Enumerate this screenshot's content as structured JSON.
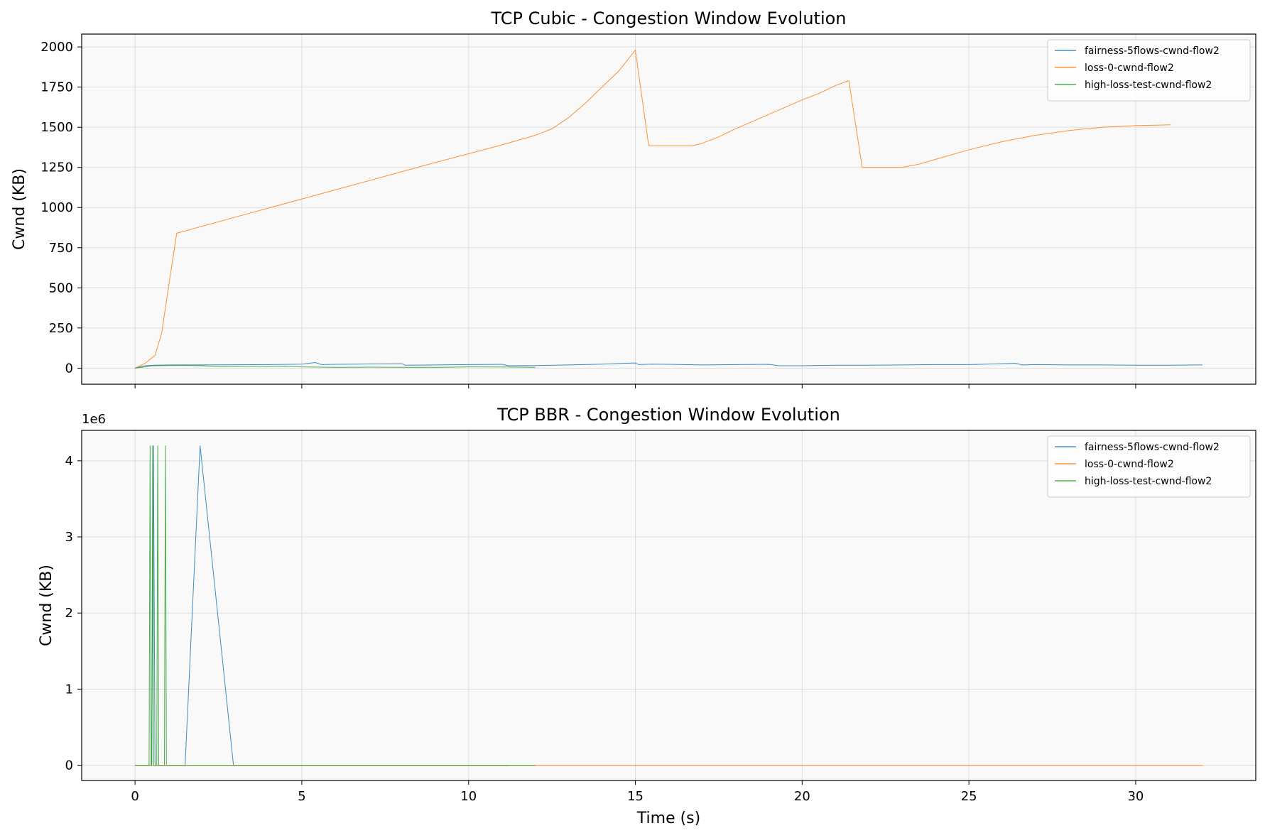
{
  "colors": {
    "series0": "#1f77b4",
    "series1": "#ff7f0e",
    "series2": "#2ca02c",
    "plot_bg": "#f9f9f9",
    "grid": "#dddddd"
  },
  "chart_data": [
    {
      "type": "line",
      "title": "TCP Cubic - Congestion Window Evolution",
      "xlabel": "",
      "ylabel": "Cwnd (KB)",
      "xlim": [
        -1.6,
        33.6
      ],
      "ylim": [
        -100,
        2080
      ],
      "xticks": [
        0,
        5,
        10,
        15,
        20,
        25,
        30
      ],
      "xtick_labels": [
        "",
        "",
        "",
        "",
        "",
        "",
        ""
      ],
      "yticks": [
        0,
        250,
        500,
        750,
        1000,
        1250,
        1500,
        1750,
        2000
      ],
      "ytick_labels": [
        "0",
        "250",
        "500",
        "750",
        "1000",
        "1250",
        "1500",
        "1750",
        "2000"
      ],
      "grid": true,
      "legend": "top-right",
      "series": [
        {
          "name": "fairness-5flows-cwnd-flow2",
          "x": [
            0,
            0.3,
            0.6,
            1,
            2,
            3,
            4,
            5,
            5.2,
            5.4,
            5.6,
            6,
            7,
            8,
            8.1,
            9,
            10,
            11,
            11.2,
            12,
            13,
            14,
            15,
            15.1,
            15.5,
            16,
            17,
            18,
            19,
            19.3,
            20,
            21,
            22,
            23,
            24,
            25,
            26,
            26.4,
            26.6,
            27,
            28,
            29,
            30,
            31,
            31.8,
            32
          ],
          "y": [
            0,
            15,
            18,
            20,
            20,
            21,
            22,
            25,
            30,
            35,
            22,
            24,
            26,
            28,
            18,
            20,
            22,
            24,
            15,
            16,
            20,
            25,
            32,
            22,
            25,
            24,
            20,
            22,
            24,
            15,
            15,
            18,
            18,
            20,
            22,
            22,
            28,
            30,
            20,
            22,
            20,
            20,
            18,
            18,
            20,
            20
          ]
        },
        {
          "name": "loss-0-cwnd-flow2",
          "x": [
            0,
            0.3,
            0.6,
            0.8,
            1,
            1.25,
            3,
            6,
            9,
            11,
            12,
            12.5,
            13,
            13.5,
            14,
            14.5,
            15,
            15.4,
            16,
            16.7,
            17,
            17.5,
            18,
            19,
            20,
            20.5,
            21,
            21.4,
            21.8,
            22.5,
            23,
            23.5,
            24,
            25,
            26,
            27,
            28,
            29,
            30,
            31.05
          ],
          "y": [
            0,
            30,
            80,
            220,
            500,
            840,
            940,
            1110,
            1280,
            1390,
            1450,
            1490,
            1560,
            1650,
            1750,
            1850,
            1980,
            1385,
            1385,
            1385,
            1400,
            1440,
            1490,
            1580,
            1670,
            1710,
            1760,
            1790,
            1250,
            1250,
            1250,
            1270,
            1300,
            1360,
            1410,
            1450,
            1480,
            1500,
            1510,
            1515
          ]
        },
        {
          "name": "high-loss-test-cwnd-flow2",
          "x": [
            0,
            0.3,
            0.5,
            1,
            1.5,
            2,
            2.5,
            3,
            3.5,
            4,
            4.5,
            5,
            6,
            7,
            8,
            9,
            10,
            11,
            12
          ],
          "y": [
            0,
            8,
            15,
            16,
            17,
            15,
            10,
            10,
            12,
            10,
            12,
            8,
            5,
            6,
            5,
            5,
            8,
            7,
            5
          ]
        }
      ]
    },
    {
      "type": "line",
      "title": "TCP BBR - Congestion Window Evolution",
      "xlabel": "Time (s)",
      "ylabel": "Cwnd (KB)",
      "axis_multiplier": "1e6",
      "xlim": [
        -1.6,
        33.6
      ],
      "ylim": [
        -0.2,
        4.4
      ],
      "xticks": [
        0,
        5,
        10,
        15,
        20,
        25,
        30
      ],
      "xtick_labels": [
        "0",
        "5",
        "10",
        "15",
        "20",
        "25",
        "30"
      ],
      "yticks": [
        0,
        1,
        2,
        3,
        4
      ],
      "ytick_labels": [
        "0",
        "1",
        "2",
        "3",
        "4"
      ],
      "grid": true,
      "legend": "top-right",
      "series": [
        {
          "name": "fairness-5flows-cwnd-flow2",
          "x": [
            0,
            0.5,
            0.55,
            0.6,
            1.5,
            1.95,
            2.95,
            11.2
          ],
          "y": [
            0,
            0,
            4.2,
            0,
            0,
            4.2,
            0,
            0
          ]
        },
        {
          "name": "loss-0-cwnd-flow2",
          "x": [
            0,
            32
          ],
          "y": [
            0,
            0
          ]
        },
        {
          "name": "high-loss-test-cwnd-flow2",
          "x": [
            0,
            0.42,
            0.45,
            0.48,
            0.5,
            0.53,
            0.56,
            0.65,
            0.68,
            0.71,
            0.88,
            0.91,
            0.94,
            12
          ],
          "y": [
            0,
            0,
            4.2,
            0,
            0,
            4.2,
            0,
            0,
            4.2,
            0,
            0,
            4.2,
            0,
            0
          ]
        }
      ]
    }
  ]
}
